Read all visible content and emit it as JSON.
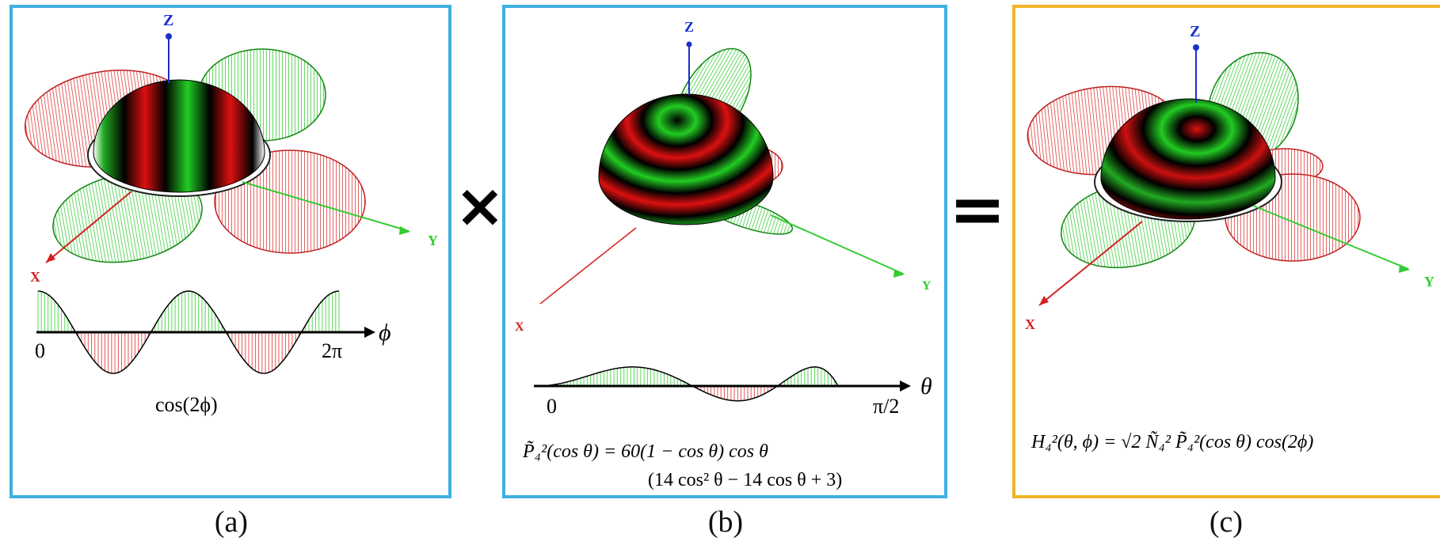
{
  "colors": {
    "panel_a_border": "#3fb0e0",
    "panel_b_border": "#3fb0e0",
    "panel_c_border": "#f0b429",
    "positive": "#22cc22",
    "negative": "#e02020",
    "z_axis": "#1a2fcc",
    "x_axis": "#d42020",
    "y_axis": "#33cc33"
  },
  "axes": {
    "x": "X",
    "y": "Y",
    "z": "Z"
  },
  "operators": {
    "times": "×",
    "equals": "="
  },
  "panel_a": {
    "caption": "(a)",
    "formula": "cos(2ϕ)",
    "plot_var": "ϕ",
    "tick_start": "0",
    "tick_end": "2π",
    "icon": "spherical-harmonic-phi-icon"
  },
  "panel_b": {
    "caption": "(b)",
    "formula_line1": "P̃₄²(cos θ) = 60(1 − cos θ) cos θ",
    "formula_line2": "(14 cos² θ  − 14 cos θ + 3)",
    "plot_var": "θ",
    "tick_start": "0",
    "tick_end": "π/2",
    "icon": "legendre-hemisphere-icon"
  },
  "panel_c": {
    "caption": "(c)",
    "formula": "H₄²(θ, ϕ) = √2 Ñ₄² P̃₄²(cos θ) cos(2ϕ)",
    "icon": "hemispherical-harmonic-icon"
  }
}
